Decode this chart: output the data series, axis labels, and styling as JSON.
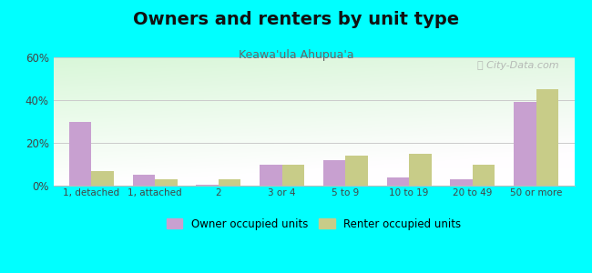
{
  "title": "Owners and renters by unit type",
  "subtitle": "Keawa'ula Ahupua'a",
  "categories": [
    "1, detached",
    "1, attached",
    "2",
    "3 or 4",
    "5 to 9",
    "10 to 19",
    "20 to 49",
    "50 or more"
  ],
  "owner_values": [
    30,
    5,
    0.5,
    10,
    12,
    4,
    3,
    39
  ],
  "renter_values": [
    7,
    3,
    3,
    10,
    14,
    15,
    10,
    45
  ],
  "owner_color": "#c8a0d0",
  "renter_color": "#c8cc88",
  "background_color": "#00ffff",
  "ylim": [
    0,
    60
  ],
  "yticks": [
    0,
    20,
    40,
    60
  ],
  "title_fontsize": 14,
  "subtitle_fontsize": 9,
  "bar_width": 0.35,
  "legend_owner": "Owner occupied units",
  "legend_renter": "Renter occupied units",
  "watermark": "ⓘ City-Data.com"
}
